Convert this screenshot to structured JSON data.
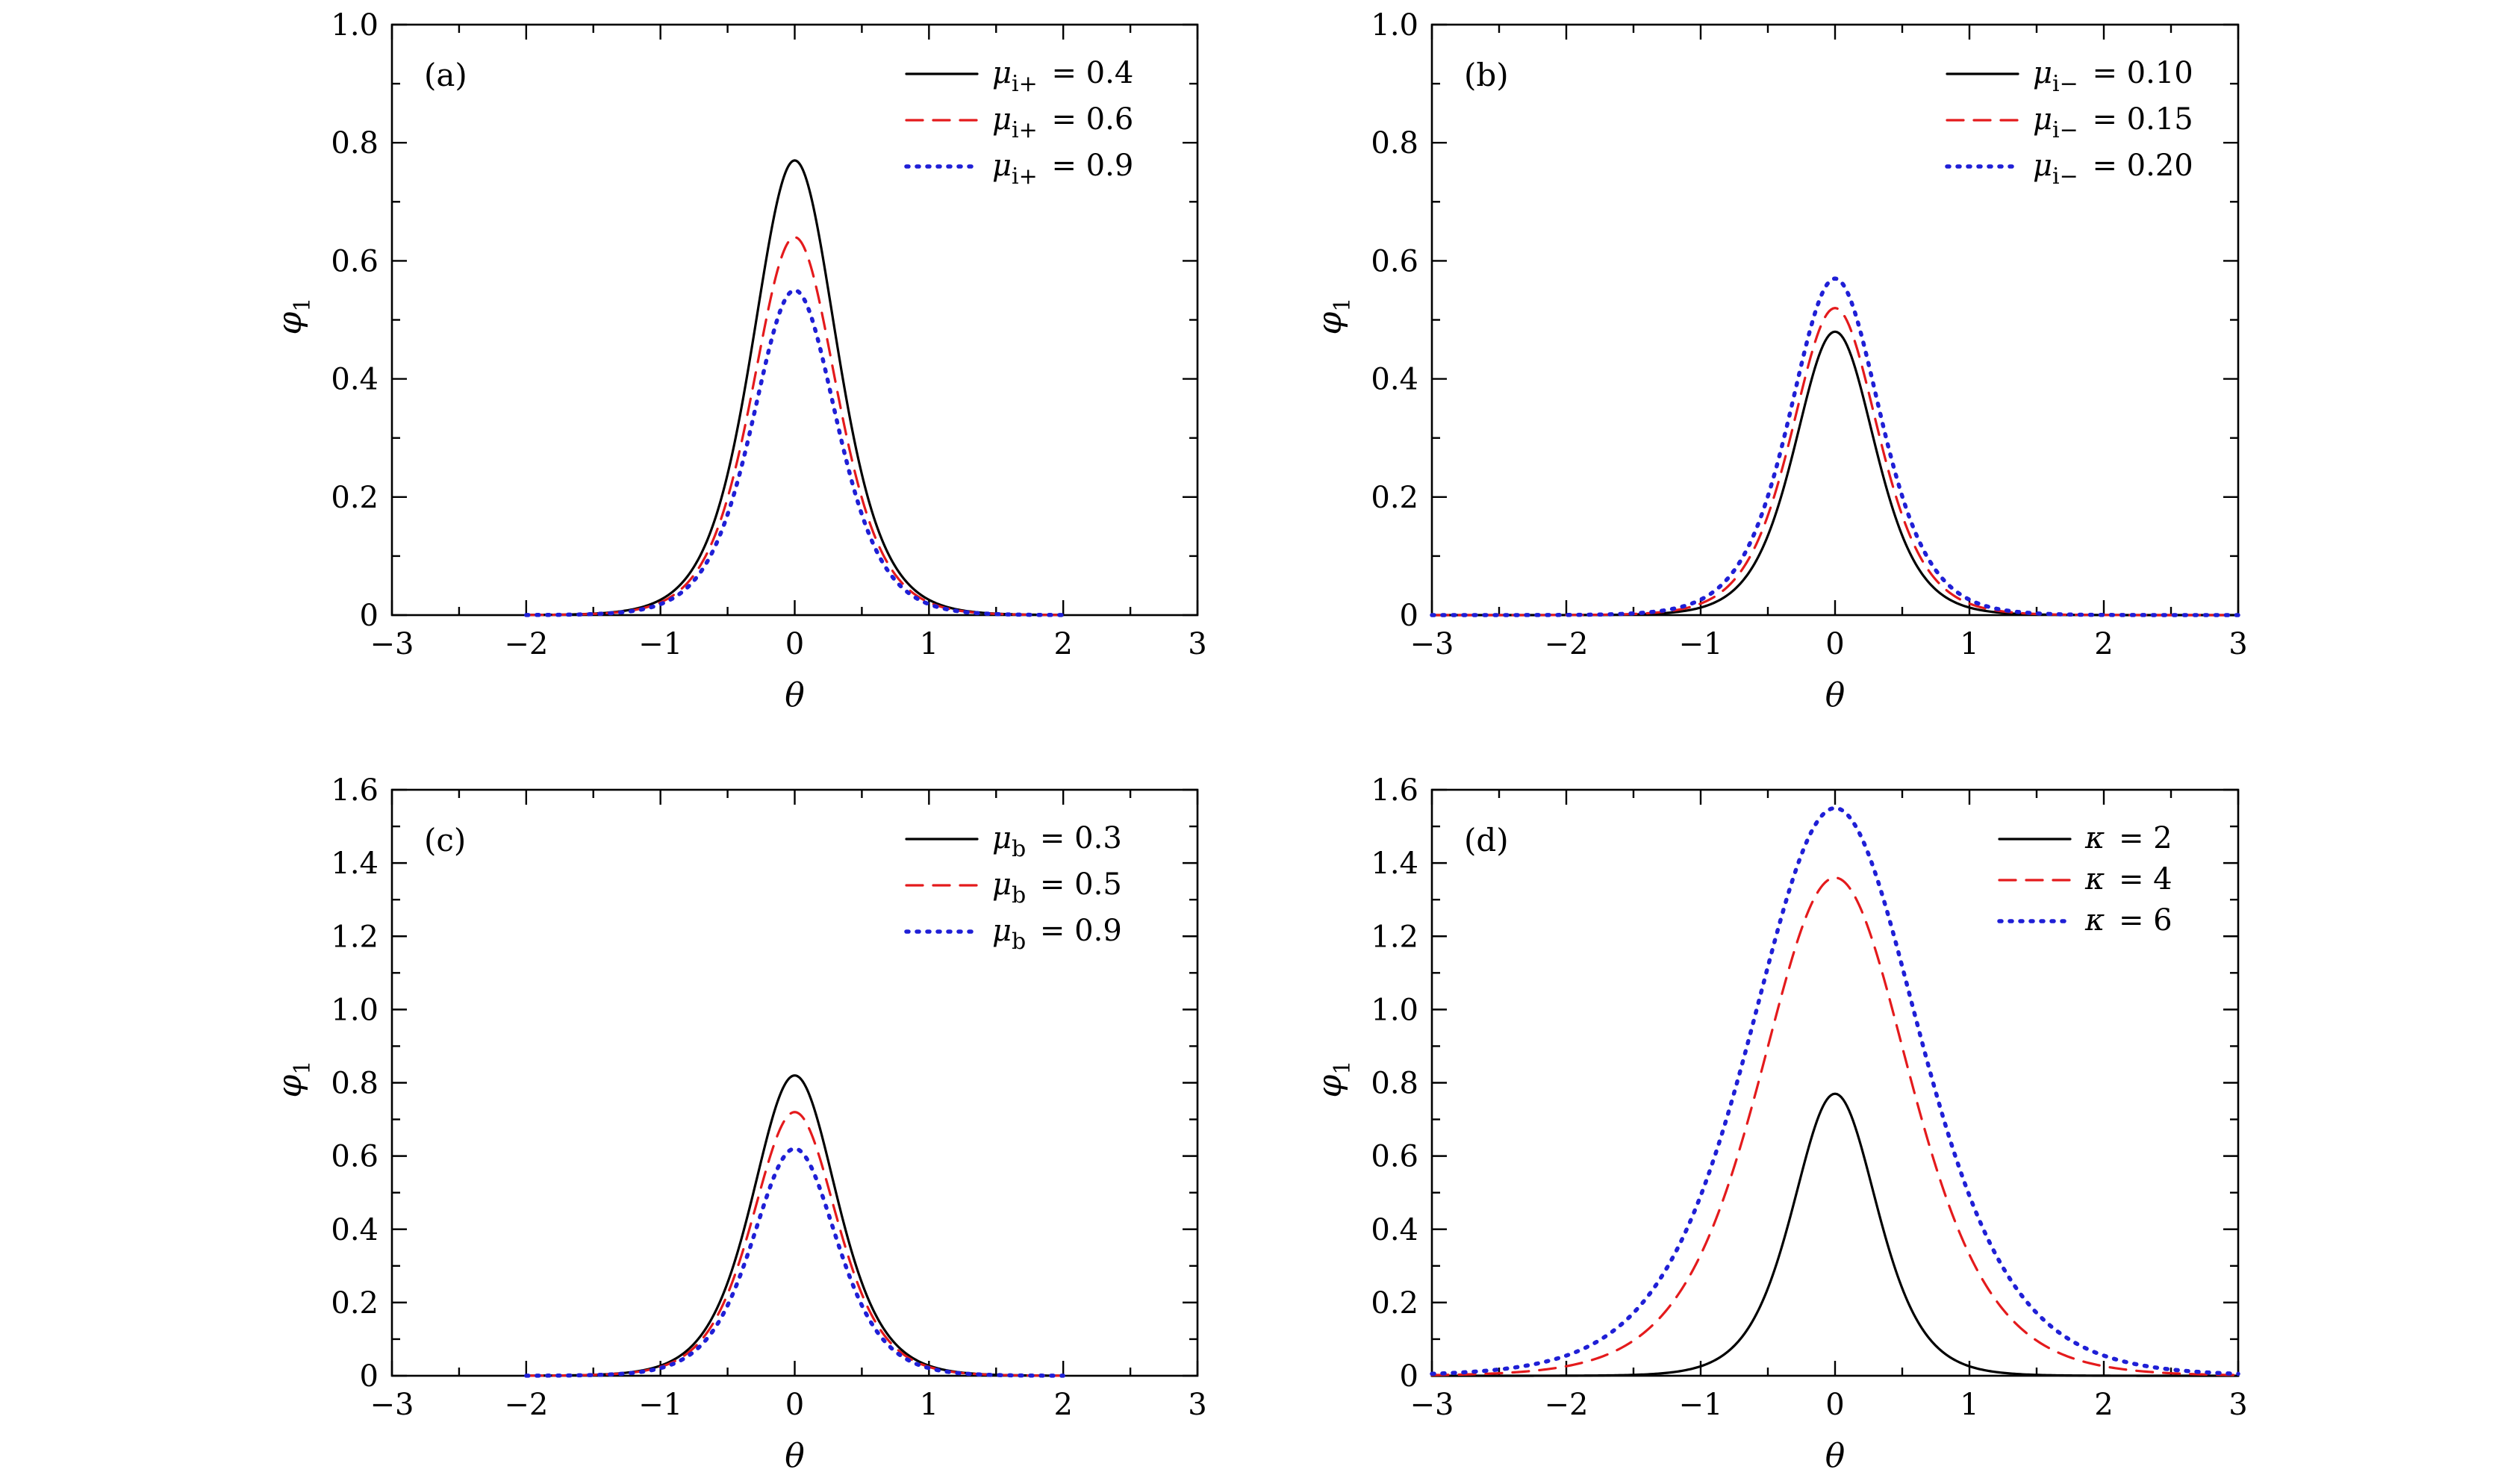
{
  "chart_data": [
    {
      "type": "line",
      "panel_label": "(a)",
      "xlabel": "θ",
      "ylabel": "φ",
      "ylabel_sub": "1",
      "xlim": [
        -3,
        3
      ],
      "ylim": [
        0,
        1.0
      ],
      "x_ticks": [
        -3,
        -2,
        -1,
        0,
        1,
        2,
        3
      ],
      "x_tick_labels": [
        "−3",
        "−2",
        "−1",
        "0",
        "1",
        "2",
        "3"
      ],
      "y_ticks": [
        0,
        0.2,
        0.4,
        0.6,
        0.8,
        1.0
      ],
      "y_tick_labels": [
        "0",
        "0.2",
        "0.4",
        "0.6",
        "0.8",
        "1.0"
      ],
      "x_range": [
        -2,
        2
      ],
      "legend_position": "top-right",
      "series": [
        {
          "name": "μi+ = 0.4",
          "sym": "μ",
          "sub": "i+",
          "value": "= 0.4",
          "amplitude": 0.77,
          "width": 0.42,
          "color": "#000000",
          "style": "solid"
        },
        {
          "name": "μi+ = 0.6",
          "sym": "μ",
          "sub": "i+",
          "value": "= 0.6",
          "amplitude": 0.64,
          "width": 0.42,
          "color": "#e41a1c",
          "style": "dashed"
        },
        {
          "name": "μi+ = 0.9",
          "sym": "μ",
          "sub": "i+",
          "value": "= 0.9",
          "amplitude": 0.55,
          "width": 0.42,
          "color": "#1f1fd6",
          "style": "dotted"
        }
      ]
    },
    {
      "type": "line",
      "panel_label": "(b)",
      "xlabel": "θ",
      "ylabel": "φ",
      "ylabel_sub": "1",
      "xlim": [
        -3,
        3
      ],
      "ylim": [
        0,
        1.0
      ],
      "x_ticks": [
        -3,
        -2,
        -1,
        0,
        1,
        2,
        3
      ],
      "x_tick_labels": [
        "−3",
        "−2",
        "−1",
        "0",
        "1",
        "2",
        "3"
      ],
      "y_ticks": [
        0,
        0.2,
        0.4,
        0.6,
        0.8,
        1.0
      ],
      "y_tick_labels": [
        "0",
        "0.2",
        "0.4",
        "0.6",
        "0.8",
        "1.0"
      ],
      "x_range": [
        -3,
        3
      ],
      "legend_position": "top-right",
      "series": [
        {
          "name": "μi− = 0.10",
          "sym": "μ",
          "sub": "i−",
          "value": "= 0.10",
          "amplitude": 0.48,
          "width": 0.4,
          "color": "#000000",
          "style": "solid"
        },
        {
          "name": "μi− = 0.15",
          "sym": "μ",
          "sub": "i−",
          "value": "= 0.15",
          "amplitude": 0.52,
          "width": 0.43,
          "color": "#e41a1c",
          "style": "dashed"
        },
        {
          "name": "μi− = 0.20",
          "sym": "μ",
          "sub": "i−",
          "value": "= 0.20",
          "amplitude": 0.57,
          "width": 0.45,
          "color": "#1f1fd6",
          "style": "dotted"
        }
      ]
    },
    {
      "type": "line",
      "panel_label": "(c)",
      "xlabel": "θ",
      "ylabel": "φ",
      "ylabel_sub": "1",
      "xlim": [
        -3,
        3
      ],
      "ylim": [
        0,
        1.6
      ],
      "x_ticks": [
        -3,
        -2,
        -1,
        0,
        1,
        2,
        3
      ],
      "x_tick_labels": [
        "−3",
        "−2",
        "−1",
        "0",
        "1",
        "2",
        "3"
      ],
      "y_ticks": [
        0,
        0.2,
        0.4,
        0.6,
        0.8,
        1.0,
        1.2,
        1.4,
        1.6
      ],
      "y_tick_labels": [
        "0",
        "0.2",
        "0.4",
        "0.6",
        "0.8",
        "1.0",
        "1.2",
        "1.4",
        "1.6"
      ],
      "x_range": [
        -2,
        2
      ],
      "legend_position": "top-right",
      "series": [
        {
          "name": "μb = 0.3",
          "sym": "μ",
          "sub": "b",
          "value": "= 0.3",
          "amplitude": 0.82,
          "width": 0.42,
          "color": "#000000",
          "style": "solid"
        },
        {
          "name": "μb = 0.5",
          "sym": "μ",
          "sub": "b",
          "value": "= 0.5",
          "amplitude": 0.72,
          "width": 0.42,
          "color": "#e41a1c",
          "style": "dashed"
        },
        {
          "name": "μb = 0.9",
          "sym": "μ",
          "sub": "b",
          "value": "= 0.9",
          "amplitude": 0.62,
          "width": 0.42,
          "color": "#1f1fd6",
          "style": "dotted"
        }
      ]
    },
    {
      "type": "line",
      "panel_label": "(d)",
      "xlabel": "θ",
      "ylabel": "φ",
      "ylabel_sub": "1",
      "xlim": [
        -3,
        3
      ],
      "ylim": [
        0,
        1.6
      ],
      "x_ticks": [
        -3,
        -2,
        -1,
        0,
        1,
        2,
        3
      ],
      "x_tick_labels": [
        "−3",
        "−2",
        "−1",
        "0",
        "1",
        "2",
        "3"
      ],
      "y_ticks": [
        0,
        0.2,
        0.4,
        0.6,
        0.8,
        1.0,
        1.2,
        1.4,
        1.6
      ],
      "y_tick_labels": [
        "0",
        "0.2",
        "0.4",
        "0.6",
        "0.8",
        "1.0",
        "1.2",
        "1.4",
        "1.6"
      ],
      "x_range": [
        -3,
        3
      ],
      "legend_position": "top-right",
      "series": [
        {
          "name": "κ = 2",
          "sym": "κ",
          "sub": "",
          "value": "= 2",
          "amplitude": 0.77,
          "width": 0.42,
          "color": "#000000",
          "style": "solid"
        },
        {
          "name": "κ = 4",
          "sym": "κ",
          "sub": "",
          "value": "= 4",
          "amplitude": 1.36,
          "width": 0.75,
          "color": "#e41a1c",
          "style": "dashed"
        },
        {
          "name": "κ = 6",
          "sym": "κ",
          "sub": "",
          "value": "= 6",
          "amplitude": 1.55,
          "width": 0.85,
          "color": "#1f1fd6",
          "style": "dotted"
        }
      ]
    }
  ]
}
